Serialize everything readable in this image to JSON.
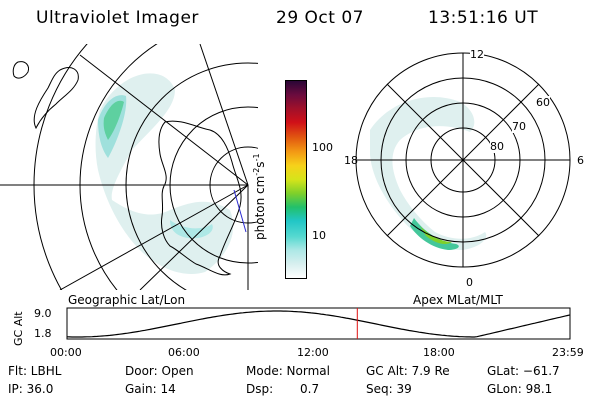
{
  "header": {
    "instrument": "Ultraviolet Imager",
    "date": "29 Oct 07",
    "time": "13:51:16 UT"
  },
  "left_panel": {
    "caption": "Geographic Lat/Lon",
    "map_color": "#000000"
  },
  "right_panel": {
    "caption": "Apex MLat/MLT",
    "mlt_labels": {
      "top": "12",
      "right": "6",
      "bottom": "0",
      "left": "18"
    },
    "lat_labels": [
      "60",
      "70",
      "80"
    ]
  },
  "colorbar": {
    "unit_prefix": "photon cm",
    "unit_exp1": "-2",
    "unit_mid": "s",
    "unit_exp2": "-1",
    "ticks": [
      "100",
      "10"
    ],
    "colors": [
      "#ffffff",
      "#d8efef",
      "#aee8e6",
      "#56d9d0",
      "#22c6c6",
      "#22c06a",
      "#7fd02a",
      "#d6e41a",
      "#f6d21a",
      "#f39a14",
      "#e25a10",
      "#d01018",
      "#a0102a",
      "#6a0b3e",
      "#2a0636"
    ]
  },
  "altitude_plot": {
    "ylabel": "GC Alt",
    "y_ticks": [
      "9.0",
      "1.8"
    ],
    "x_ticks": [
      "00:00",
      "06:00",
      "12:00",
      "18:00",
      "23:59"
    ],
    "current_marker_hours": 13.85,
    "marker_color": "#e01010"
  },
  "status": {
    "row1": {
      "flt": "Flt: LBHL",
      "door": "Door: Open",
      "mode": "Mode: Normal",
      "gcalt": "GC Alt: 7.9 Re",
      "glat": "GLat: −61.7"
    },
    "row2": {
      "ip": "IP: 36.0",
      "gain": "Gain: 14",
      "dsp_label": "Dsp:",
      "dsp_value": "0.7",
      "seq": "Seq: 39",
      "glon": "GLon: 98.1"
    }
  }
}
